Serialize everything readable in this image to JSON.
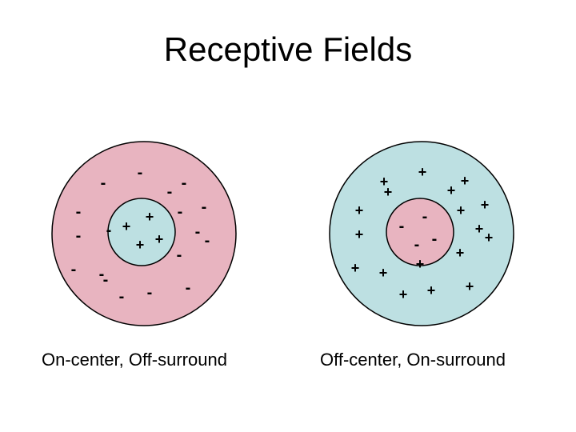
{
  "title": "Receptive Fields",
  "colors": {
    "pink": "#e8b4c0",
    "cyan": "#bde0e2",
    "stroke": "#000000"
  },
  "fields": [
    {
      "caption": "On-center, Off-surround",
      "outer_fill": "pink",
      "inner_fill": "cyan",
      "center_sign": "+",
      "surround_sign": "-",
      "center_count": 4,
      "surround_count": 18
    },
    {
      "caption": "Off-center, On-surround",
      "outer_fill": "cyan",
      "inner_fill": "pink",
      "center_sign": "-",
      "surround_sign": "+",
      "center_count": 4,
      "surround_count": 18
    }
  ]
}
